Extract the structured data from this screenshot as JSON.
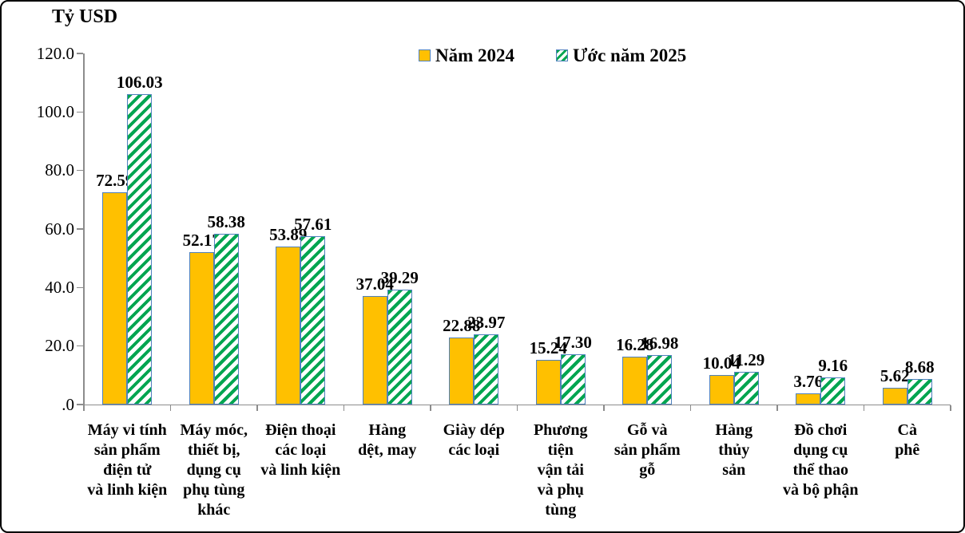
{
  "figure_title": "Tỷ USD",
  "legend": {
    "items": [
      {
        "label": "Năm 2024",
        "swatch": "solid-gold-square"
      },
      {
        "label": "Ước năm 2025",
        "swatch": "hatched-green-square"
      }
    ]
  },
  "colors": {
    "gold_fill": "#FFC000",
    "bar_border_blue": "#4F81BD",
    "hatch_green": "#00A550",
    "axis_gray": "#8C8C8C",
    "text": "#000000",
    "background": "#FFFFFF"
  },
  "chart_data": {
    "type": "bar",
    "title": "Tỷ USD",
    "unit_label": "Tỷ USD",
    "xlabel": "",
    "ylabel": "Tỷ USD",
    "ylim": [
      0,
      120
    ],
    "grid": false,
    "legend_position": "top-center",
    "yticks": [
      {
        "value": 0,
        "label": ".0"
      },
      {
        "value": 20,
        "label": "20.0"
      },
      {
        "value": 40,
        "label": "40.0"
      },
      {
        "value": 60,
        "label": "60.0"
      },
      {
        "value": 80,
        "label": "80.0"
      },
      {
        "value": 100,
        "label": "100.0"
      },
      {
        "value": 120,
        "label": "120.0"
      }
    ],
    "categories": [
      {
        "label": "Máy vi tính sản phẩm điện tử và linh kiện",
        "lines": [
          "Máy vi tính",
          "sản phẩm",
          "điện tử",
          "và linh kiện"
        ]
      },
      {
        "label": "Máy móc, thiết bị, dụng cụ phụ tùng khác",
        "lines": [
          "Máy móc,",
          "thiết bị,",
          "dụng cụ",
          "phụ tùng",
          "khác"
        ]
      },
      {
        "label": "Điện thoại các loại và linh kiện",
        "lines": [
          "Điện thoại",
          "các loại",
          "và linh kiện"
        ]
      },
      {
        "label": "Hàng dệt, may",
        "lines": [
          "Hàng",
          "dệt, may"
        ]
      },
      {
        "label": "Giày dép các loại",
        "lines": [
          "Giày dép",
          "các loại"
        ]
      },
      {
        "label": "Phương tiện vận tải và phụ tùng",
        "lines": [
          "Phương",
          "tiện",
          "vận tải",
          "và phụ",
          "tùng"
        ]
      },
      {
        "label": "Gỗ và sản phẩm gỗ",
        "lines": [
          "Gỗ và",
          "sản phẩm",
          "gỗ"
        ]
      },
      {
        "label": "Hàng thủy sản",
        "lines": [
          "Hàng",
          "thủy",
          "sản"
        ]
      },
      {
        "label": "Đồ chơi dụng cụ thể thao và bộ phận",
        "lines": [
          "Đồ chơi",
          "dụng cụ",
          "thể thao",
          "và bộ phận"
        ]
      },
      {
        "label": "Cà phê",
        "lines": [
          "Cà",
          "phê"
        ]
      }
    ],
    "series": [
      {
        "name": "Năm 2024",
        "values": [
          72.59,
          52.17,
          53.89,
          37.04,
          22.88,
          15.24,
          16.28,
          10.04,
          3.76,
          5.62
        ],
        "labels": [
          "72.59",
          "52.17",
          "53.89",
          "37.04",
          "22.88",
          "15.24",
          "16.28",
          "10.04",
          "3.76",
          "5.62"
        ]
      },
      {
        "name": "Ước năm 2025",
        "values": [
          106.03,
          58.38,
          57.61,
          39.29,
          23.97,
          17.3,
          16.98,
          11.29,
          9.16,
          8.68
        ],
        "labels": [
          "106.03",
          "58.38",
          "57.61",
          "39.29",
          "23.97",
          "17.30",
          "16.98",
          "11.29",
          "9.16",
          "8.68"
        ]
      }
    ]
  }
}
